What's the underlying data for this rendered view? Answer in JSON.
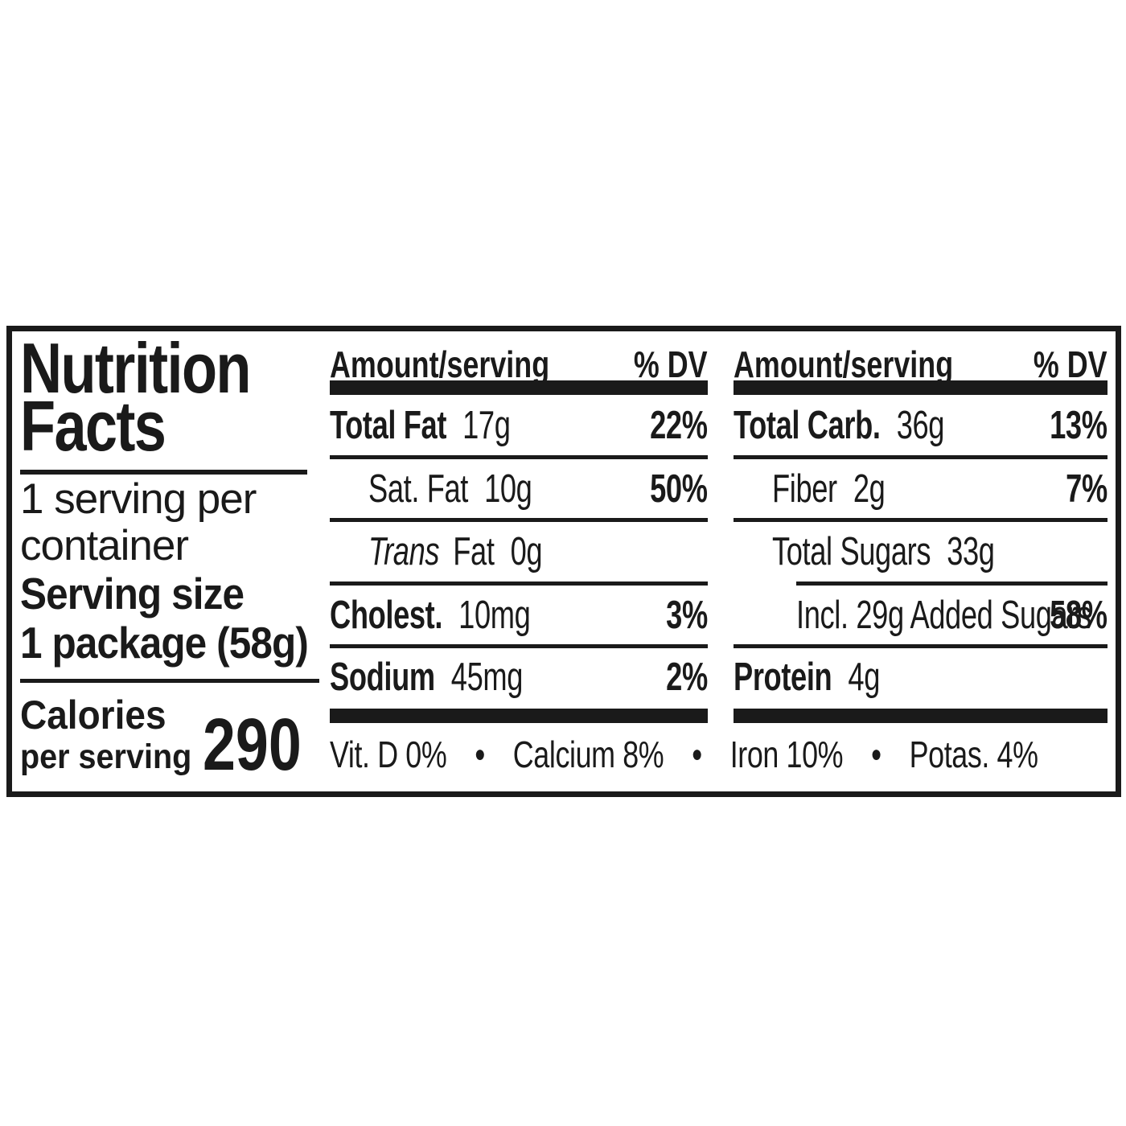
{
  "panel": {
    "title_line1": "Nutrition",
    "title_line2": "Facts",
    "servings_line1": "1 serving per",
    "servings_line2": "container",
    "serving_size_line1": "Serving size",
    "serving_size_line2": "1 package (58g)",
    "calories_line1": "Calories",
    "calories_line2": "per serving",
    "calories_value": "290",
    "columns": [
      {
        "header": {
          "amount": "Amount/serving",
          "dv": "% DV"
        },
        "rows": [
          {
            "name": "Total Fat",
            "value": "17g",
            "dv": "22%"
          },
          {
            "name": "Sat. Fat",
            "value": "10g",
            "dv": "50%"
          },
          {
            "name_italic": "Trans",
            "name": "Fat",
            "value": "0g",
            "dv": ""
          },
          {
            "name": "Cholest.",
            "value": "10mg",
            "dv": "3%"
          },
          {
            "name": "Sodium",
            "value": "45mg",
            "dv": "2%"
          }
        ]
      },
      {
        "header": {
          "amount": "Amount/serving",
          "dv": "% DV"
        },
        "rows": [
          {
            "name": "Total Carb.",
            "value": "36g",
            "dv": "13%"
          },
          {
            "name": "Fiber",
            "value": "2g",
            "dv": "7%"
          },
          {
            "name": "Total Sugars",
            "value": "33g",
            "dv": ""
          },
          {
            "name": "Incl. 29g Added Sugars",
            "value": "",
            "dv": "58%"
          },
          {
            "name": "Protein",
            "value": "4g",
            "dv": ""
          }
        ]
      }
    ],
    "micronutrients": [
      {
        "label": "Vit. D 0%"
      },
      {
        "label": "Calcium 8%"
      },
      {
        "label": "Iron 10%"
      },
      {
        "label": "Potas. 4%"
      }
    ],
    "bullet": "●",
    "colors": {
      "ink": "#1a1a1a",
      "paper": "#ffffff"
    }
  }
}
